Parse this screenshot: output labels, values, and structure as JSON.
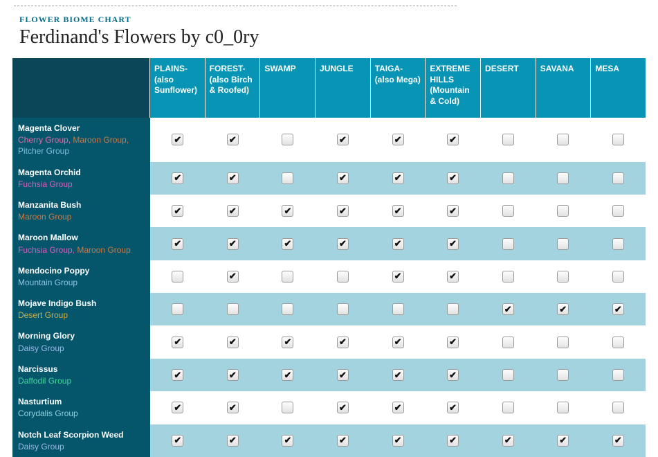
{
  "header": {
    "kicker": "FLOWER BIOME CHART",
    "title": "Ferdinand's Flowers by c0_0ry"
  },
  "group_colors": {
    "Cherry Group": "#e86aa8",
    "Maroon Group": "#c97b4a",
    "Pitcher Group": "#7fbfe0",
    "Fuchsia Group": "#d85fc0",
    "Mountain Group": "#8fc7e8",
    "Desert Group": "#c8b24a",
    "Daisy Group": "#9bb9e8",
    "Daffodil Group": "#3fd89a",
    "Corydalis Group": "#8fd3e0"
  },
  "columns": [
    "PLAINS- (also Sunflower)",
    "FOREST- (also Birch & Roofed)",
    "SWAMP",
    "JUNGLE",
    "TAIGA- (also Mega)",
    "EXTREME HILLS (Mountain & Cold)",
    "DESERT",
    "SAVANA",
    "MESA"
  ],
  "rows": [
    {
      "name": "Magenta Clover",
      "groups": [
        "Cherry Group",
        "Maroon Group",
        "Pitcher Group"
      ],
      "cells": [
        true,
        true,
        false,
        true,
        true,
        true,
        false,
        false,
        false
      ]
    },
    {
      "name": "Magenta Orchid",
      "groups": [
        "Fuchsia Group"
      ],
      "cells": [
        true,
        true,
        false,
        true,
        true,
        true,
        false,
        false,
        false
      ]
    },
    {
      "name": "Manzanita Bush",
      "groups": [
        "Maroon Group"
      ],
      "cells": [
        true,
        true,
        true,
        true,
        true,
        true,
        false,
        false,
        false
      ]
    },
    {
      "name": "Maroon Mallow",
      "groups": [
        "Fuchsia Group",
        "Maroon Group"
      ],
      "cells": [
        true,
        true,
        true,
        true,
        true,
        true,
        false,
        false,
        false
      ]
    },
    {
      "name": "Mendocino Poppy",
      "groups": [
        "Mountain Group"
      ],
      "cells": [
        false,
        true,
        false,
        false,
        true,
        true,
        false,
        false,
        false
      ]
    },
    {
      "name": "Mojave Indigo Bush",
      "groups": [
        "Desert Group"
      ],
      "cells": [
        false,
        false,
        false,
        false,
        false,
        false,
        true,
        true,
        true
      ]
    },
    {
      "name": "Morning Glory",
      "groups": [
        "Daisy Group"
      ],
      "cells": [
        true,
        true,
        true,
        true,
        true,
        true,
        false,
        false,
        false
      ]
    },
    {
      "name": "Narcissus",
      "groups": [
        "Daffodil Group"
      ],
      "cells": [
        true,
        true,
        true,
        true,
        true,
        true,
        false,
        false,
        false
      ]
    },
    {
      "name": "Nasturtium",
      "groups": [
        "Corydalis Group"
      ],
      "cells": [
        true,
        true,
        false,
        true,
        true,
        true,
        false,
        false,
        false
      ]
    },
    {
      "name": "Notch Leaf Scorpion Weed",
      "groups": [
        "Daisy Group"
      ],
      "cells": [
        true,
        true,
        true,
        true,
        true,
        true,
        true,
        true,
        true
      ]
    }
  ],
  "styling": {
    "header_bg": "#0794b5",
    "corner_bg": "#0a4657",
    "rowlabel_bg": "#05556b",
    "row_even_bg": "#ffffff",
    "row_odd_bg": "#a3d3df",
    "kicker_color": "#046f8a",
    "check_glyph": "✔"
  }
}
